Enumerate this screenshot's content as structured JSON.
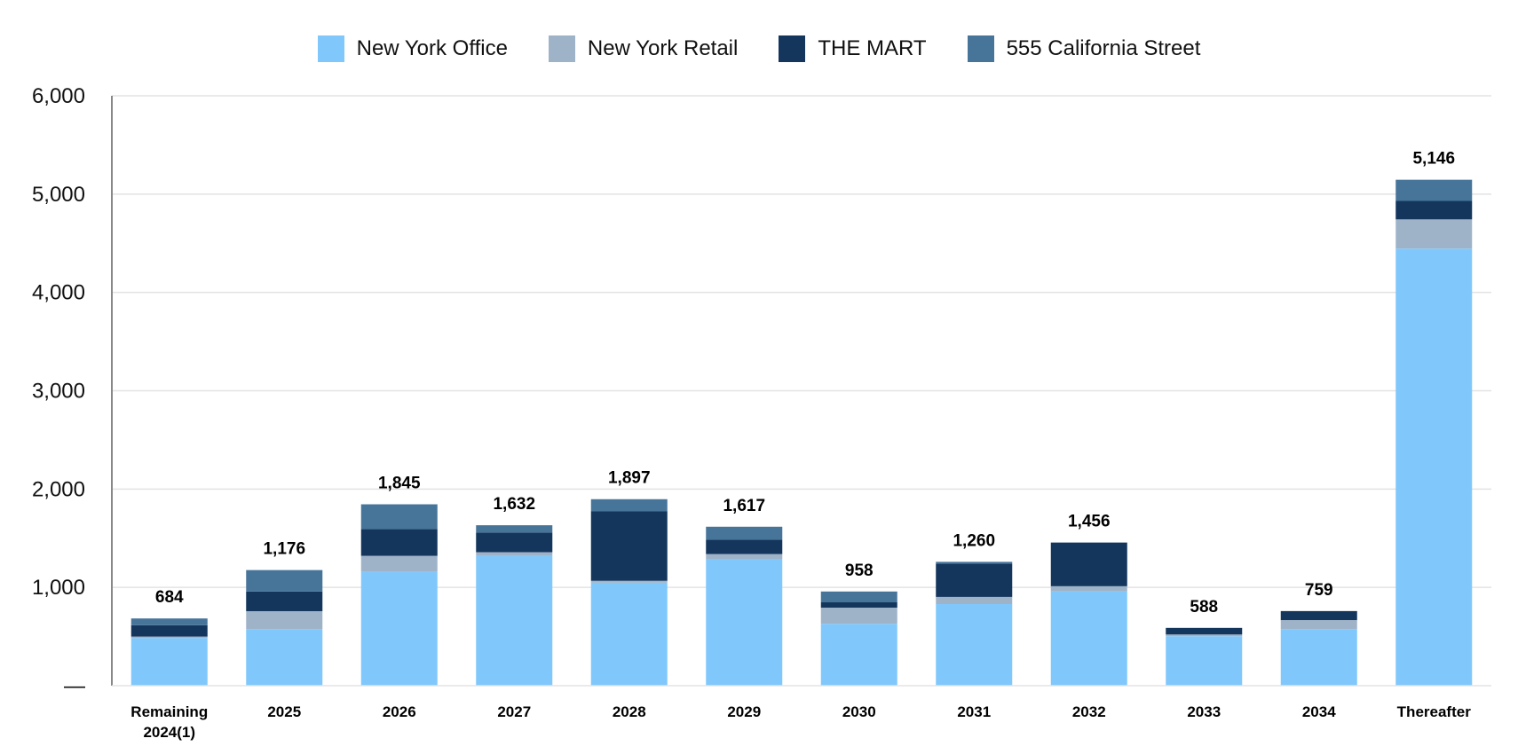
{
  "chart_data": {
    "type": "bar",
    "stacked": true,
    "categories": [
      "Remaining 2024(1)",
      "2025",
      "2026",
      "2027",
      "2028",
      "2029",
      "2030",
      "2031",
      "2032",
      "2033",
      "2034",
      "Thereafter"
    ],
    "category_lines": [
      [
        "Remaining",
        "2024(1)"
      ],
      [
        "2025"
      ],
      [
        "2026"
      ],
      [
        "2027"
      ],
      [
        "2028"
      ],
      [
        "2029"
      ],
      [
        "2030"
      ],
      [
        "2031"
      ],
      [
        "2032"
      ],
      [
        "2033"
      ],
      [
        "2034"
      ],
      [
        "Thereafter"
      ]
    ],
    "series": [
      {
        "name": "New York Office",
        "color": "#80C8FC",
        "values": [
          485,
          576,
          1158,
          1321,
          1048,
          1285,
          630,
          830,
          958,
          503,
          576,
          4446
        ]
      },
      {
        "name": "New York Retail",
        "color": "#9FB3C8",
        "values": [
          15,
          182,
          163,
          37,
          19,
          54,
          164,
          73,
          54,
          18,
          91,
          297
        ]
      },
      {
        "name": "THE MART",
        "color": "#14365D",
        "values": [
          115,
          200,
          273,
          200,
          709,
          146,
          54,
          339,
          444,
          67,
          92,
          188
        ]
      },
      {
        "name": "555 California Street",
        "color": "#47759A",
        "values": [
          69,
          218,
          251,
          74,
          121,
          132,
          110,
          18,
          0,
          0,
          0,
          215
        ]
      }
    ],
    "totals": [
      "684",
      "1,176",
      "1,845",
      "1,632",
      "1,897",
      "1,617",
      "958",
      "1,260",
      "1,456",
      "588",
      "759",
      "5,146"
    ],
    "total_values": [
      684,
      1176,
      1845,
      1632,
      1897,
      1617,
      958,
      1260,
      1456,
      588,
      759,
      5146
    ],
    "ylim": [
      0,
      6000
    ],
    "yticks": [
      0,
      1000,
      2000,
      3000,
      4000,
      5000,
      6000
    ],
    "ytick_labels": [
      "—",
      "1,000",
      "2,000",
      "3,000",
      "4,000",
      "5,000",
      "6,000"
    ],
    "grid": true,
    "legend_position": "top-center",
    "title": "",
    "xlabel": "",
    "ylabel": ""
  }
}
